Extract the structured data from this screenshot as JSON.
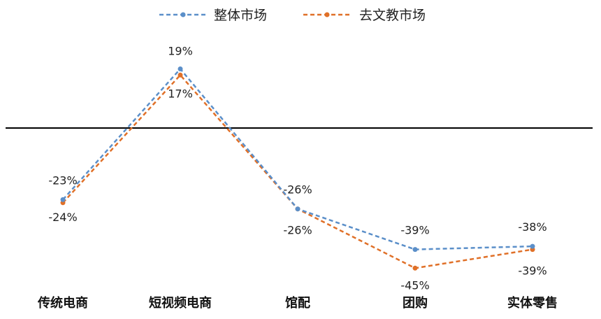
{
  "chart_data": {
    "type": "line",
    "categories": [
      "传统电商",
      "短视频电商",
      "馆配",
      "团购",
      "实体零售"
    ],
    "series": [
      {
        "name": "整体市场",
        "values": [
          -23,
          19,
          -26,
          -39,
          -38
        ],
        "color": "#5B8FC9",
        "labels": [
          "-23%",
          "19%",
          "-26%",
          "-39%",
          "-38%"
        ]
      },
      {
        "name": "去文教市场",
        "values": [
          -24,
          17,
          -26,
          -45,
          -39
        ],
        "color": "#E07028",
        "labels": [
          "-24%",
          "17%",
          "-26%",
          "-45%",
          "-39%"
        ]
      }
    ],
    "ylim": [
      -50,
      25
    ],
    "zero_line": true,
    "grid": false,
    "legend_position": "top-center",
    "line_style": "dashed",
    "title": "",
    "xlabel": "",
    "ylabel": ""
  }
}
